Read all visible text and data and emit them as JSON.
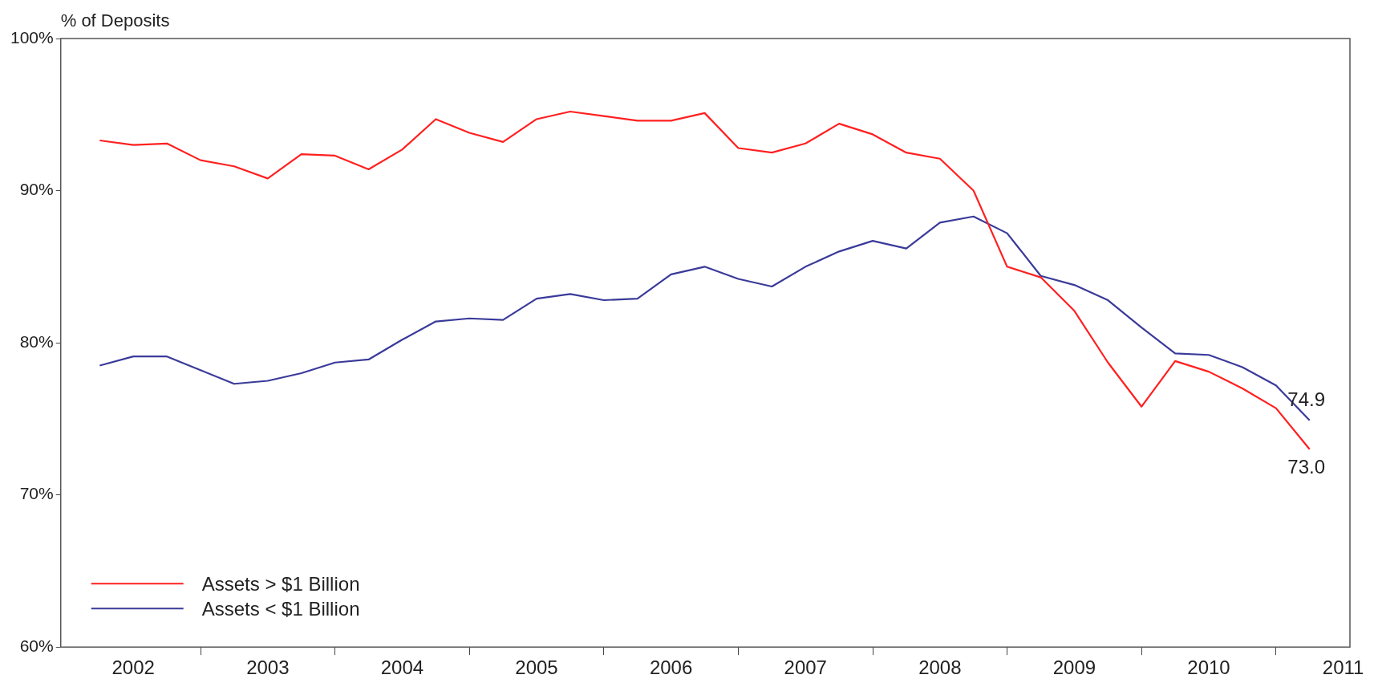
{
  "chart_data": {
    "type": "line",
    "ylabel": "% of Deposits",
    "x": [
      2002.25,
      2002.5,
      2002.75,
      2003,
      2003.25,
      2003.5,
      2003.75,
      2004,
      2004.25,
      2004.5,
      2004.75,
      2005,
      2005.25,
      2005.5,
      2005.75,
      2006,
      2006.25,
      2006.5,
      2006.75,
      2007,
      2007.25,
      2007.5,
      2007.75,
      2008,
      2008.25,
      2008.5,
      2008.75,
      2009,
      2009.25,
      2009.5,
      2009.75,
      2010,
      2010.25,
      2010.5,
      2010.75,
      2011,
      2011.25
    ],
    "series": [
      {
        "name": "Assets > $1 Billion",
        "color": "#ff2020",
        "values": [
          93.3,
          93.0,
          93.1,
          92.0,
          91.6,
          90.8,
          92.4,
          92.3,
          91.4,
          92.7,
          94.7,
          93.8,
          93.2,
          94.7,
          95.2,
          94.9,
          94.6,
          94.6,
          95.1,
          92.8,
          92.5,
          93.1,
          94.4,
          93.7,
          92.5,
          92.1,
          90.0,
          85.0,
          84.3,
          82.1,
          78.7,
          75.8,
          78.8,
          78.1,
          77.0,
          75.7,
          73.0
        ],
        "value_labels": [
          null,
          null,
          null,
          null,
          null,
          null,
          null,
          null,
          null,
          null,
          null,
          null,
          null,
          null,
          null,
          null,
          null,
          null,
          null,
          null,
          null,
          null,
          null,
          null,
          null,
          null,
          null,
          null,
          null,
          null,
          null,
          null,
          null,
          null,
          null,
          null,
          "73.0"
        ]
      },
      {
        "name": "Assets < $1 Billion",
        "color": "#3a3a9a",
        "values": [
          78.5,
          79.1,
          79.1,
          78.2,
          77.3,
          77.5,
          78.0,
          78.7,
          78.9,
          80.2,
          81.4,
          81.6,
          81.5,
          82.9,
          83.2,
          82.8,
          82.9,
          84.5,
          85.0,
          84.2,
          83.7,
          85.0,
          86.0,
          86.7,
          86.2,
          87.9,
          88.3,
          87.2,
          84.4,
          83.8,
          82.8,
          81.0,
          79.3,
          79.2,
          78.4,
          77.2,
          74.9
        ],
        "value_labels": [
          null,
          null,
          null,
          null,
          null,
          null,
          null,
          null,
          null,
          null,
          null,
          null,
          null,
          null,
          null,
          null,
          null,
          null,
          null,
          null,
          null,
          null,
          null,
          null,
          null,
          null,
          null,
          null,
          null,
          null,
          null,
          null,
          null,
          null,
          null,
          null,
          "74.9"
        ]
      }
    ],
    "xlim": [
      2001.96,
      2011.55
    ],
    "xticks": [
      {
        "value": 2002.5,
        "label": "2002"
      },
      {
        "value": 2003,
        "label": null
      },
      {
        "value": 2003.5,
        "label": "2003"
      },
      {
        "value": 2004,
        "label": null
      },
      {
        "value": 2004.5,
        "label": "2004"
      },
      {
        "value": 2005,
        "label": null
      },
      {
        "value": 2005.5,
        "label": "2005"
      },
      {
        "value": 2006,
        "label": null
      },
      {
        "value": 2006.5,
        "label": "2006"
      },
      {
        "value": 2007,
        "label": null
      },
      {
        "value": 2007.5,
        "label": "2007"
      },
      {
        "value": 2008,
        "label": null
      },
      {
        "value": 2008.5,
        "label": "2008"
      },
      {
        "value": 2009,
        "label": null
      },
      {
        "value": 2009.5,
        "label": "2009"
      },
      {
        "value": 2010,
        "label": null
      },
      {
        "value": 2010.5,
        "label": "2010"
      },
      {
        "value": 2011,
        "label": null
      },
      {
        "value": 2011.5,
        "label": "2011"
      }
    ],
    "ylim": [
      60,
      100
    ],
    "yticks": [
      {
        "value": 60,
        "label": "60%"
      },
      {
        "value": 70,
        "label": "70%"
      },
      {
        "value": 80,
        "label": "80%"
      },
      {
        "value": 90,
        "label": "90%"
      },
      {
        "value": 100,
        "label": "100%"
      }
    ],
    "grid": false,
    "legend": "bottom left",
    "marker": "none",
    "line_style": "solid"
  }
}
